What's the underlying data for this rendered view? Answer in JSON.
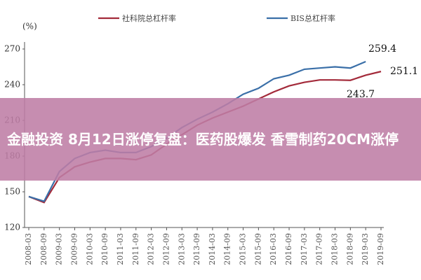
{
  "chart_data": {
    "type": "line",
    "unit_label": "(%)",
    "categories": [
      "2008-03",
      "2008-09",
      "2009-03",
      "2009-09",
      "2010-03",
      "2010-09",
      "2011-03",
      "2011-09",
      "2012-03",
      "2012-09",
      "2013-03",
      "2013-09",
      "2014-03",
      "2014-09",
      "2015-03",
      "2015-09",
      "2016-03",
      "2016-09",
      "2017-03",
      "2017-09",
      "2018-03",
      "2018-09",
      "2019-03",
      "2019-09"
    ],
    "series": [
      {
        "name": "社科院总杠杆率",
        "color": "#a32a3a",
        "values": [
          146,
          141,
          162,
          171,
          175,
          178,
          178,
          177,
          181,
          190,
          198,
          206,
          212,
          217,
          222,
          228,
          234,
          239,
          242,
          244,
          244,
          243.7,
          248,
          251.1
        ]
      },
      {
        "name": "BIS总杠杆率",
        "color": "#3a6fa8",
        "values": [
          146,
          142,
          167,
          178,
          183,
          185,
          183,
          183,
          188,
          195,
          204,
          211,
          217,
          224,
          232,
          237,
          245,
          248,
          253,
          254,
          255,
          254,
          259.4,
          null
        ]
      }
    ],
    "annotations": [
      "259.4",
      "251.1",
      "243.7"
    ],
    "ylim": [
      120,
      270
    ],
    "yticks": [
      120,
      150,
      180,
      210,
      240,
      270
    ],
    "grid": false,
    "banner": "金融投资 8月12日涨停复盘：医药股爆发 香雪制药20CM涨停"
  }
}
